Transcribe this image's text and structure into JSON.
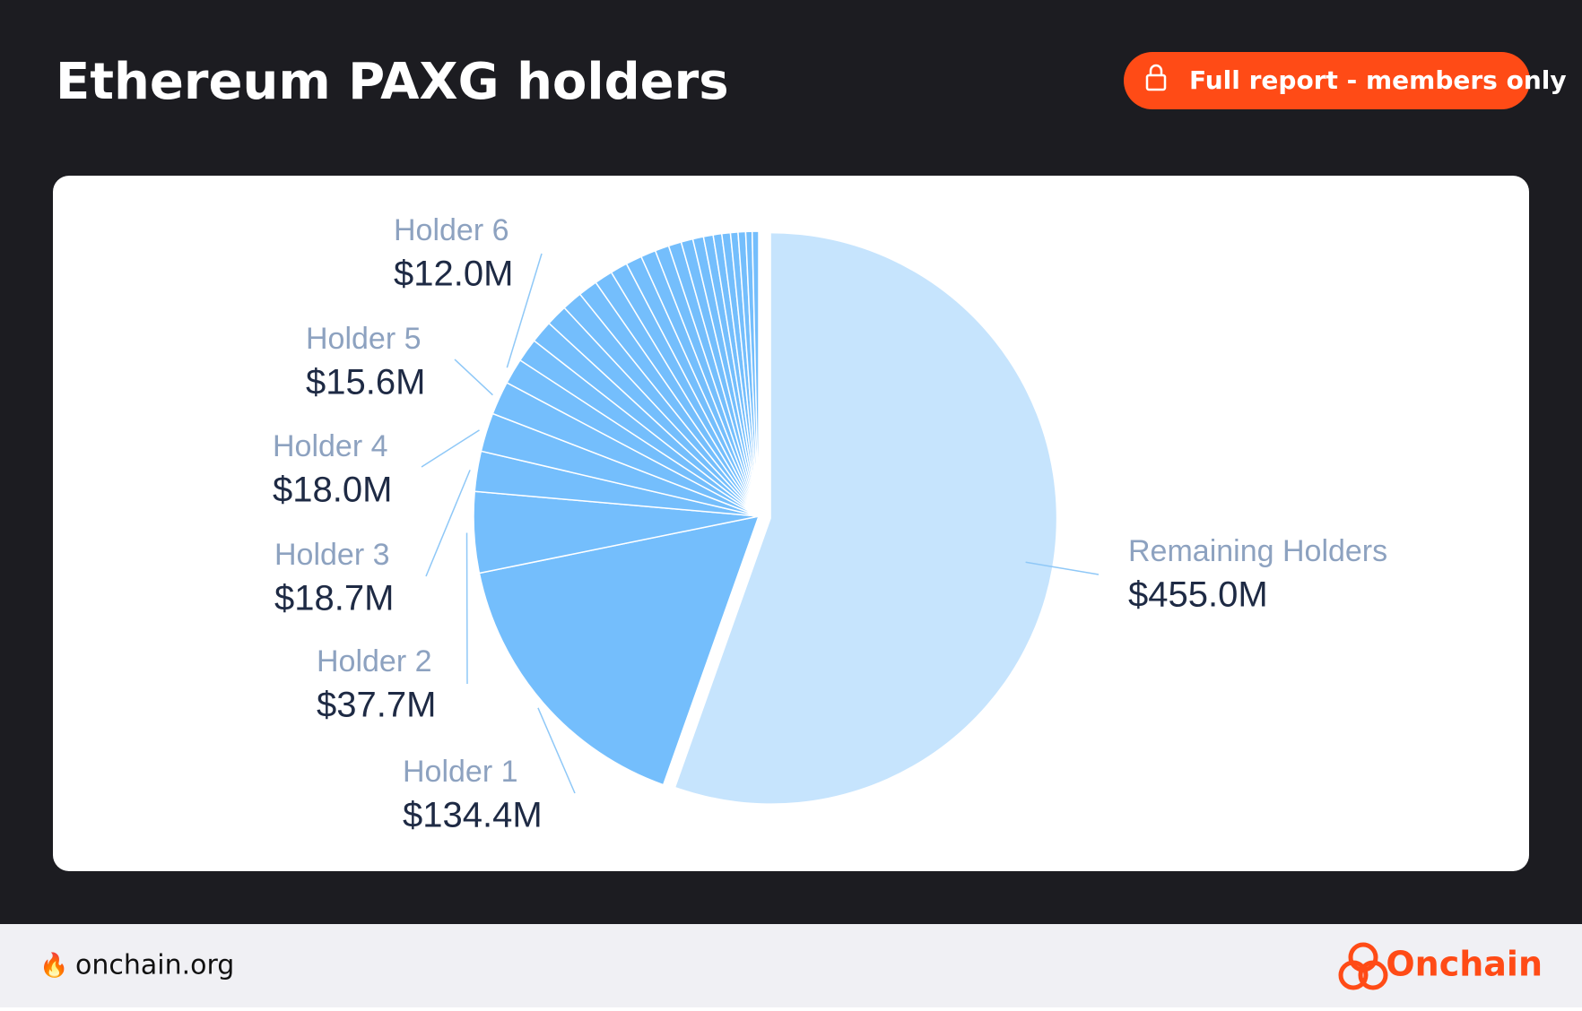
{
  "header": {
    "title": "Ethereum PAXG holders",
    "button": "Full report - members only"
  },
  "chart_data": {
    "type": "pie",
    "categories": [
      "Remaining Holders",
      "Holder 1",
      "Holder 2",
      "Holder 3",
      "Holder 4",
      "Holder 5",
      "Holder 6",
      null,
      null,
      null,
      null,
      null,
      null,
      null,
      null,
      null,
      null,
      null,
      null,
      null,
      null,
      null,
      null,
      null,
      null,
      null,
      null
    ],
    "values": [
      455.0,
      134.4,
      37.7,
      18.7,
      18.0,
      15.6,
      12.0,
      11,
      10.5,
      10,
      9.5,
      9,
      8.5,
      8,
      7.5,
      7,
      6.5,
      6,
      5.5,
      5,
      4.5,
      4,
      4,
      3.5,
      3.5,
      3,
      3
    ],
    "value_labels": [
      "$455.0M",
      "$134.4M",
      "$37.7M",
      "$18.7M",
      "$18.0M",
      "$15.6M",
      "$12.0M",
      null,
      null,
      null,
      null,
      null,
      null,
      null,
      null,
      null,
      null,
      null,
      null,
      null,
      null,
      null,
      null,
      null,
      null,
      null,
      null
    ],
    "colors": [
      "#c6e4fd",
      "#74befc",
      "#74befc",
      "#74befc",
      "#74befc",
      "#74befc",
      "#74befc",
      "#74befc",
      "#74befc",
      "#74befc",
      "#74befc",
      "#74befc",
      "#74befc",
      "#74befc",
      "#74befc",
      "#74befc",
      "#74befc",
      "#74befc",
      "#74befc",
      "#74befc",
      "#74befc",
      "#74befc",
      "#74befc",
      "#74befc",
      "#74befc",
      "#74befc",
      "#74befc"
    ]
  },
  "footer": {
    "site": "onchain.org",
    "brand": "Onchain"
  }
}
